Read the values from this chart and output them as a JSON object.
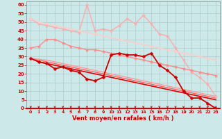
{
  "xlabel": "Vent moyen/en rafales ( km/h )",
  "xlim": [
    -0.5,
    23.5
  ],
  "ylim": [
    0,
    62
  ],
  "yticks": [
    0,
    5,
    10,
    15,
    20,
    25,
    30,
    35,
    40,
    45,
    50,
    55,
    60
  ],
  "xticks": [
    0,
    1,
    2,
    3,
    4,
    5,
    6,
    7,
    8,
    9,
    10,
    11,
    12,
    13,
    14,
    15,
    16,
    17,
    18,
    19,
    20,
    21,
    22,
    23
  ],
  "bg_color": "#cce8e8",
  "grid_color": "#aacccc",
  "series": [
    {
      "x": [
        0,
        1,
        2,
        3,
        4,
        5,
        6,
        7,
        8,
        9,
        10,
        11,
        12,
        13,
        14,
        15,
        16,
        17,
        18,
        19,
        20,
        21,
        22,
        23
      ],
      "y": [
        52,
        49,
        48,
        47,
        46,
        45,
        44,
        60,
        45,
        46,
        45,
        48,
        52,
        49,
        54,
        49,
        43,
        42,
        35,
        28,
        21,
        18,
        14,
        7
      ],
      "color": "#ffaaaa",
      "lw": 1.0,
      "marker": "*",
      "ms": 3.5
    },
    {
      "x": [
        0,
        1,
        2,
        3,
        4,
        5,
        6,
        7,
        8,
        9,
        10,
        11,
        12,
        13,
        14,
        15,
        16,
        17,
        18,
        19,
        20,
        21,
        22,
        23
      ],
      "y": [
        35,
        36,
        40,
        40,
        38,
        36,
        35,
        34,
        34,
        33,
        32,
        31,
        30,
        29,
        28,
        27,
        26,
        25,
        24,
        23,
        22,
        21,
        20,
        19
      ],
      "color": "#ff8888",
      "lw": 1.0,
      "marker": "*",
      "ms": 3.5
    },
    {
      "x": [
        0,
        1,
        2,
        3,
        4,
        5,
        6,
        7,
        8,
        9,
        10,
        11,
        12,
        13,
        14,
        15,
        16,
        17,
        18,
        19,
        20,
        21,
        22,
        23
      ],
      "y": [
        29,
        27,
        26,
        23,
        24,
        22,
        21,
        17,
        16,
        18,
        31,
        32,
        31,
        31,
        30,
        32,
        25,
        22,
        18,
        10,
        6,
        6,
        3,
        0
      ],
      "color": "#cc0000",
      "lw": 1.3,
      "marker": "D",
      "ms": 2.5
    },
    {
      "x": [
        0,
        1,
        2,
        3,
        4,
        5,
        6,
        7,
        8,
        9,
        10,
        11,
        12,
        13,
        14,
        15,
        16,
        17,
        18,
        19,
        20,
        21,
        22,
        23
      ],
      "y": [
        29,
        27,
        26,
        25,
        24,
        23,
        22,
        21,
        20,
        19,
        18,
        17,
        16,
        15,
        14,
        13,
        12,
        11,
        10,
        9,
        8,
        7,
        6,
        5
      ],
      "color": "#dd0000",
      "lw": 1.2,
      "marker": null,
      "ms": 0
    },
    {
      "x": [
        0,
        1,
        2,
        3,
        4,
        5,
        6,
        7,
        8,
        9,
        10,
        11,
        12,
        13,
        14,
        15,
        16,
        17,
        18,
        19,
        20,
        21,
        22,
        23
      ],
      "y": [
        29,
        28,
        27,
        26,
        25,
        24,
        23,
        22,
        21,
        20,
        19,
        18,
        17,
        16,
        15,
        14,
        13,
        12,
        11,
        10,
        9,
        8,
        7,
        6
      ],
      "color": "#ff6666",
      "lw": 1.0,
      "marker": null,
      "ms": 0
    },
    {
      "x": [
        0,
        1,
        2,
        3,
        4,
        5,
        6,
        7,
        8,
        9,
        10,
        11,
        12,
        13,
        14,
        15,
        16,
        17,
        18,
        19,
        20,
        21,
        22,
        23
      ],
      "y": [
        29,
        28.5,
        28,
        27,
        26,
        25,
        24,
        23,
        22,
        21,
        20,
        19,
        18,
        17,
        16,
        15,
        14,
        13,
        12,
        11,
        10,
        9,
        8,
        7
      ],
      "color": "#ff9999",
      "lw": 1.0,
      "marker": null,
      "ms": 0
    },
    {
      "x": [
        0,
        1,
        2,
        3,
        4,
        5,
        6,
        7,
        8,
        9,
        10,
        11,
        12,
        13,
        14,
        15,
        16,
        17,
        18,
        19,
        20,
        21,
        22,
        23
      ],
      "y": [
        52,
        50,
        49,
        48,
        47,
        46,
        45,
        44,
        43,
        42,
        41,
        40,
        39,
        38,
        37,
        36,
        35,
        34,
        33,
        32,
        31,
        30,
        29,
        28
      ],
      "color": "#ffcccc",
      "lw": 1.0,
      "marker": "*",
      "ms": 3.0
    }
  ],
  "arrow_color": "#cc0000",
  "axis_label_color": "#cc0000",
  "tick_color": "#cc0000"
}
